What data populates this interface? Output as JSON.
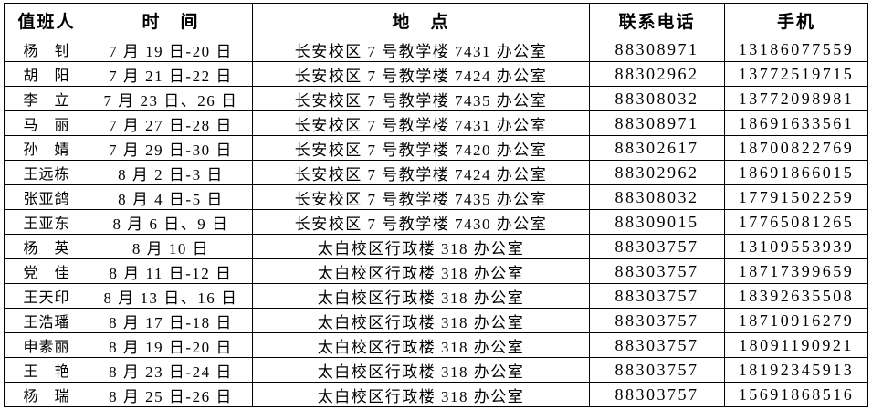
{
  "headers": [
    "值班人",
    "时　间",
    "地　点",
    "联系电话",
    "手机"
  ],
  "rows": [
    {
      "name": "杨　钊",
      "time": "7 月 19 日-20 日",
      "location": "长安校区 7 号教学楼 7431 办公室",
      "phone": "88308971",
      "mobile": "13186077559"
    },
    {
      "name": "胡　阳",
      "time": "7 月 21 日-22 日",
      "location": "长安校区 7 号教学楼 7424 办公室",
      "phone": "88302962",
      "mobile": "13772519715"
    },
    {
      "name": "李　立",
      "time": "7 月 23 日、26 日",
      "location": "长安校区 7 号教学楼 7435 办公室",
      "phone": "88308032",
      "mobile": "13772098981"
    },
    {
      "name": "马　丽",
      "time": "7 月 27 日-28 日",
      "location": "长安校区 7 号教学楼 7431 办公室",
      "phone": "88308971",
      "mobile": "18691633561"
    },
    {
      "name": "孙　婧",
      "time": "7 月 29 日-30 日",
      "location": "长安校区 7 号教学楼 7420 办公室",
      "phone": "88302617",
      "mobile": "18700822769"
    },
    {
      "name": "王远栋",
      "time": "8 月 2 日-3 日",
      "location": "长安校区 7 号教学楼 7424 办公室",
      "phone": "88302962",
      "mobile": "18691866015"
    },
    {
      "name": "张亚鸽",
      "time": "8 月 4 日-5 日",
      "location": "长安校区 7 号教学楼 7435 办公室",
      "phone": "88308032",
      "mobile": "17791502259"
    },
    {
      "name": "王亚东",
      "time": "8 月 6 日、9 日",
      "location": "长安校区 7 号教学楼 7430 办公室",
      "phone": "88309015",
      "mobile": "17765081265"
    },
    {
      "name": "杨　英",
      "time": "8 月 10 日",
      "location": "太白校区行政楼 318 办公室",
      "phone": "88303757",
      "mobile": "13109553939"
    },
    {
      "name": "党　佳",
      "time": "8 月 11 日-12 日",
      "location": "太白校区行政楼 318 办公室",
      "phone": "88303757",
      "mobile": "18717399659"
    },
    {
      "name": "王天印",
      "time": "8 月 13 日、16 日",
      "location": "太白校区行政楼 318 办公室",
      "phone": "88303757",
      "mobile": "18392635508"
    },
    {
      "name": "王浩璠",
      "time": "8 月 17 日-18 日",
      "location": "太白校区行政楼 318 办公室",
      "phone": "88303757",
      "mobile": "18710916279"
    },
    {
      "name": "申素丽",
      "time": "8 月 19 日-20 日",
      "location": "太白校区行政楼 318 办公室",
      "phone": "88303757",
      "mobile": "18091190921"
    },
    {
      "name": "王　艳",
      "time": "8 月 23 日-24 日",
      "location": "太白校区行政楼 318 办公室",
      "phone": "88303757",
      "mobile": "18192345913"
    },
    {
      "name": "杨　瑞",
      "time": "8 月 25 日-26 日",
      "location": "太白校区行政楼 318 办公室",
      "phone": "88303757",
      "mobile": "15691868516"
    }
  ]
}
